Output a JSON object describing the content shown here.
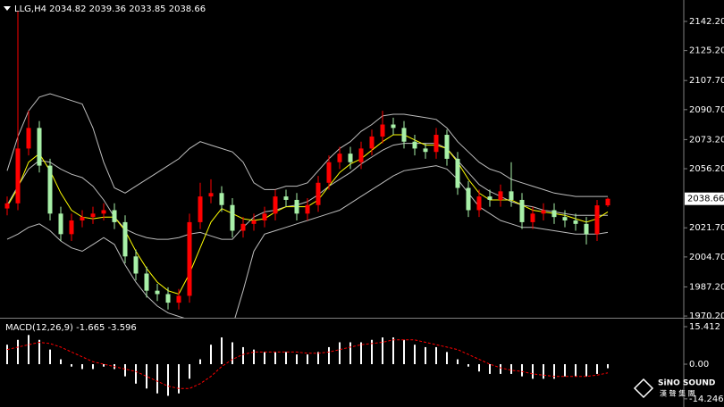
{
  "chart_data": [
    {
      "type": "candlestick",
      "title": "LLG,H4 2034.82 2039.36 2033.85 2038.66",
      "ylim": [
        1969.2,
        2154.7
      ],
      "yticks": [
        {
          "value": 2142.2,
          "label": "2142.20"
        },
        {
          "value": 2125.2,
          "label": "2125.20"
        },
        {
          "value": 2107.7,
          "label": "2107.70"
        },
        {
          "value": 2090.7,
          "label": "2090.70"
        },
        {
          "value": 2073.2,
          "label": "2073.20"
        },
        {
          "value": 2056.2,
          "label": "2056.20"
        },
        {
          "value": 2021.7,
          "label": "2021.70"
        },
        {
          "value": 2004.7,
          "label": "2004.70"
        },
        {
          "value": 1987.2,
          "label": "1987.20"
        },
        {
          "value": 1970.2,
          "label": "1970.20"
        }
      ],
      "up_color": "#ff0000",
      "down_color": "#a8f0a8",
      "open": [
        2033,
        2036,
        2068,
        2080,
        2058,
        2030,
        2018,
        2026,
        2028,
        2030,
        2032,
        2025,
        2005,
        1995,
        1985,
        1983,
        1978,
        1982,
        2025,
        2040,
        2042,
        2035,
        2020,
        2024,
        2026,
        2030,
        2040,
        2038,
        2030,
        2035,
        2048,
        2060,
        2065,
        2060,
        2068,
        2075,
        2082,
        2080,
        2072,
        2068,
        2066,
        2076,
        2062,
        2045,
        2032,
        2040,
        2038,
        2043,
        2038,
        2025,
        2030,
        2032,
        2028,
        2026,
        2024,
        2018,
        2034.82
      ],
      "high": [
        2040,
        2148,
        2090,
        2084,
        2062,
        2034,
        2030,
        2032,
        2034,
        2036,
        2036,
        2029,
        2009,
        1999,
        1989,
        1987,
        1986,
        2030,
        2048,
        2050,
        2046,
        2039,
        2028,
        2030,
        2034,
        2044,
        2044,
        2042,
        2039,
        2052,
        2064,
        2069,
        2069,
        2072,
        2079,
        2090,
        2086,
        2084,
        2076,
        2071,
        2080,
        2079,
        2066,
        2049,
        2044,
        2044,
        2047,
        2060,
        2042,
        2034,
        2036,
        2036,
        2032,
        2030,
        2028,
        2038,
        2039.36
      ],
      "low": [
        2029,
        2032,
        2064,
        2054,
        2026,
        2014,
        2014,
        2022,
        2024,
        2026,
        2021,
        2001,
        1991,
        1981,
        1979,
        1974,
        1974,
        1978,
        2021,
        2036,
        2031,
        2016,
        2016,
        2020,
        2022,
        2026,
        2034,
        2026,
        2026,
        2031,
        2044,
        2056,
        2056,
        2056,
        2064,
        2071,
        2076,
        2068,
        2064,
        2062,
        2062,
        2058,
        2041,
        2028,
        2028,
        2034,
        2034,
        2034,
        2021,
        2021,
        2026,
        2024,
        2022,
        2020,
        2012,
        2014,
        2033.85
      ],
      "close": [
        2036,
        2068,
        2080,
        2058,
        2030,
        2018,
        2026,
        2028,
        2030,
        2032,
        2025,
        2005,
        1995,
        1985,
        1983,
        1978,
        1982,
        2025,
        2040,
        2042,
        2035,
        2020,
        2024,
        2026,
        2030,
        2040,
        2038,
        2030,
        2035,
        2048,
        2060,
        2065,
        2060,
        2068,
        2075,
        2082,
        2080,
        2072,
        2068,
        2066,
        2076,
        2062,
        2045,
        2032,
        2040,
        2038,
        2043,
        2038,
        2025,
        2030,
        2032,
        2028,
        2026,
        2024,
        2018,
        2034.82,
        2038.66
      ],
      "series": [
        {
          "color": "#bdbdbd",
          "values": [
            2055,
            2075,
            2090,
            2098,
            2100,
            2098,
            2096,
            2094,
            2080,
            2060,
            2045,
            2042,
            2046,
            2050,
            2054,
            2058,
            2062,
            2068,
            2072,
            2070,
            2068,
            2066,
            2060,
            2048,
            2044,
            2044,
            2046,
            2046,
            2048,
            2055,
            2062,
            2068,
            2072,
            2078,
            2082,
            2087,
            2088,
            2088,
            2087,
            2086,
            2085,
            2080,
            2072,
            2066,
            2060,
            2056,
            2054,
            2050,
            2048,
            2046,
            2044,
            2042,
            2041,
            2040,
            2040,
            2040,
            2040
          ]
        },
        {
          "color": "#bdbdbd",
          "values": [
            2035,
            2046,
            2056,
            2061,
            2060,
            2056,
            2053,
            2051,
            2046,
            2038,
            2028,
            2021,
            2018,
            2016,
            2015,
            2015,
            2016,
            2018,
            2019,
            2017,
            2015,
            2015,
            2022,
            2028,
            2031,
            2032,
            2034,
            2035,
            2037,
            2041,
            2046,
            2050,
            2054,
            2059,
            2063,
            2067,
            2070,
            2071,
            2071,
            2071,
            2071,
            2068,
            2061,
            2054,
            2047,
            2043,
            2040,
            2037,
            2035,
            2034,
            2032,
            2031,
            2030,
            2029,
            2029,
            2029,
            2029
          ]
        },
        {
          "color": "#bdbdbd",
          "values": [
            2015,
            2018,
            2022,
            2024,
            2020,
            2014,
            2010,
            2008,
            2012,
            2016,
            2012,
            2000,
            1990,
            1982,
            1976,
            1972,
            1970,
            1968,
            1966,
            1964,
            1962,
            1964,
            1985,
            2008,
            2018,
            2020,
            2022,
            2024,
            2026,
            2028,
            2030,
            2032,
            2036,
            2040,
            2044,
            2048,
            2052,
            2055,
            2056,
            2057,
            2058,
            2056,
            2050,
            2042,
            2034,
            2030,
            2026,
            2024,
            2022,
            2022,
            2021,
            2020,
            2019,
            2018,
            2018,
            2018,
            2019
          ]
        },
        {
          "color": "#ffff00",
          "values": [
            2034,
            2045,
            2060,
            2065,
            2055,
            2042,
            2032,
            2028,
            2027,
            2028,
            2028,
            2020,
            2008,
            1998,
            1990,
            1985,
            1983,
            1995,
            2010,
            2025,
            2033,
            2030,
            2027,
            2026,
            2027,
            2031,
            2034,
            2034,
            2034,
            2038,
            2046,
            2054,
            2059,
            2062,
            2067,
            2072,
            2076,
            2076,
            2073,
            2070,
            2070,
            2068,
            2060,
            2050,
            2042,
            2038,
            2038,
            2038,
            2035,
            2032,
            2031,
            2030,
            2029,
            2027,
            2025,
            2027,
            2031
          ]
        }
      ]
    },
    {
      "type": "macd",
      "title": "MACD(12,26,9) -1.665 -3.596",
      "ylim": [
        -17.6,
        18.35
      ],
      "yticks": [
        15.412,
        {
          "value": 0,
          "label": "0.00"
        },
        -14.246
      ],
      "series": [
        {
          "kind": "bar",
          "color": "#ffffff",
          "values": [
            8,
            10,
            12,
            10,
            6,
            2,
            -1,
            -2,
            -2,
            -1,
            -2,
            -5,
            -8,
            -10,
            -12,
            -13,
            -12,
            -6,
            2,
            8,
            11,
            9,
            7,
            6,
            5,
            5,
            5,
            4,
            4,
            5,
            7,
            9,
            9,
            9,
            10,
            11,
            11,
            10,
            8,
            7,
            7,
            5,
            2,
            -1,
            -3,
            -4,
            -4,
            -4,
            -5,
            -6,
            -6,
            -6,
            -5,
            -5,
            -5,
            -4,
            -1.665
          ]
        },
        {
          "kind": "line",
          "color": "#ff0000",
          "dash": true,
          "values": [
            6,
            7,
            8,
            9,
            8.5,
            7,
            5,
            3,
            1,
            0,
            -1,
            -2,
            -3,
            -5,
            -7,
            -9,
            -10,
            -10,
            -8,
            -5,
            -1,
            2,
            4,
            5,
            5,
            5,
            5,
            5,
            4.5,
            4.5,
            5,
            6,
            7,
            8,
            8.5,
            9,
            10,
            10,
            10,
            9,
            8,
            7,
            6,
            4,
            2,
            0,
            -1.5,
            -2.5,
            -3,
            -4,
            -4.5,
            -5,
            -5,
            -5,
            -5,
            -4.5,
            -3.596
          ]
        }
      ]
    }
  ],
  "branding": {
    "name": "SiNO SOUND",
    "subtitle": "漢 聲 集 團"
  }
}
